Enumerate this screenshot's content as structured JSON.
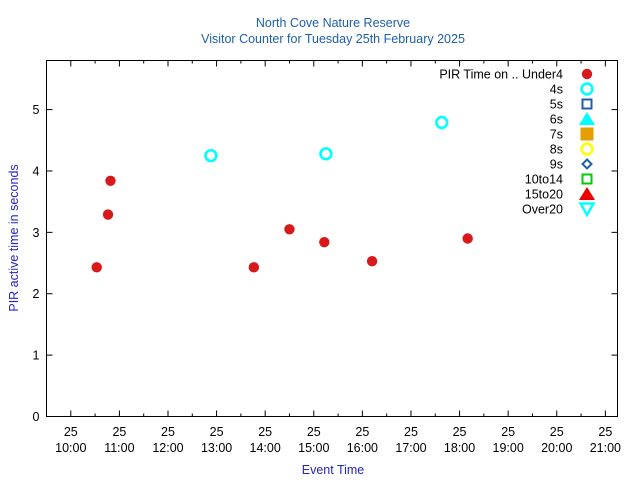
{
  "chart_data": {
    "type": "scatter",
    "title": "North Cove Nature Reserve",
    "subtitle": "Visitor Counter for Tuesday 25th February 2025",
    "xlabel": "Event Time",
    "ylabel": "PIR active time in seconds",
    "xlim": [
      "2025-02-25 09:30",
      "2025-02-25 21:15"
    ],
    "ylim": [
      0,
      5.8
    ],
    "grid": false,
    "legend_placement": "top-right",
    "x_ticks": [
      {
        "day": "25",
        "time": "10:00"
      },
      {
        "day": "25",
        "time": "11:00"
      },
      {
        "day": "25",
        "time": "12:00"
      },
      {
        "day": "25",
        "time": "13:00"
      },
      {
        "day": "25",
        "time": "14:00"
      },
      {
        "day": "25",
        "time": "15:00"
      },
      {
        "day": "25",
        "time": "16:00"
      },
      {
        "day": "25",
        "time": "17:00"
      },
      {
        "day": "25",
        "time": "18:00"
      },
      {
        "day": "25",
        "time": "19:00"
      },
      {
        "day": "25",
        "time": "20:00"
      },
      {
        "day": "25",
        "time": "21:00"
      }
    ],
    "y_ticks": [
      "0",
      "1",
      "2",
      "3",
      "4",
      "5"
    ],
    "series": [
      {
        "name": "PIR Time on .. Under4",
        "marker": "filled-circle",
        "color": "#d7191c",
        "points": [
          {
            "x": "2025-02-25 10:32",
            "y": 2.43
          },
          {
            "x": "2025-02-25 10:46",
            "y": 3.29
          },
          {
            "x": "2025-02-25 10:49",
            "y": 3.84
          },
          {
            "x": "2025-02-25 13:46",
            "y": 2.43
          },
          {
            "x": "2025-02-25 14:30",
            "y": 3.05
          },
          {
            "x": "2025-02-25 15:13",
            "y": 2.84
          },
          {
            "x": "2025-02-25 16:12",
            "y": 2.53
          },
          {
            "x": "2025-02-25 18:10",
            "y": 2.9
          }
        ]
      },
      {
        "name": "4s",
        "marker": "open-circle",
        "color": "#00ffff",
        "points": [
          {
            "x": "2025-02-25 12:53",
            "y": 4.25
          },
          {
            "x": "2025-02-25 15:15",
            "y": 4.28
          },
          {
            "x": "2025-02-25 17:38",
            "y": 4.79
          }
        ]
      },
      {
        "name": "5s",
        "marker": "open-square",
        "color": "#1f5fa8",
        "points": []
      },
      {
        "name": "6s",
        "marker": "filled-triangle-up",
        "color": "#00ffff",
        "points": []
      },
      {
        "name": "7s",
        "marker": "filled-square",
        "color": "#e69f00",
        "points": []
      },
      {
        "name": "8s",
        "marker": "open-circle",
        "color": "#ffff00",
        "points": []
      },
      {
        "name": "9s",
        "marker": "open-diamond",
        "color": "#1f5fa8",
        "points": []
      },
      {
        "name": "10to14",
        "marker": "open-square",
        "color": "#00cc00",
        "points": []
      },
      {
        "name": "15to20",
        "marker": "filled-triangle-up",
        "color": "#ee0000",
        "points": []
      },
      {
        "name": "Over20",
        "marker": "open-triangle-down",
        "color": "#00ffff",
        "points": []
      }
    ]
  }
}
